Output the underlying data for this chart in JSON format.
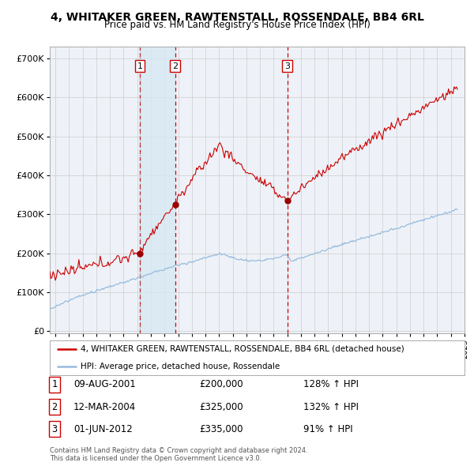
{
  "title": "4, WHITAKER GREEN, RAWTENSTALL, ROSSENDALE, BB4 6RL",
  "subtitle": "Price paid vs. HM Land Registry's House Price Index (HPI)",
  "background_color": "#ffffff",
  "plot_bg_color": "#eef2f8",
  "grid_color": "#cccccc",
  "hpi_color": "#99bbdd",
  "price_color": "#cc0000",
  "sale_marker_color": "#990000",
  "vline_color": "#cc0000",
  "shade_color": "#d8e8f4",
  "sale_dates_dt": [
    "2001-08-09",
    "2004-03-12",
    "2012-06-01"
  ],
  "sale_prices": [
    200000,
    325000,
    335000
  ],
  "sale_labels": [
    "1",
    "2",
    "3"
  ],
  "sale_pct": [
    "128% ↑ HPI",
    "132% ↑ HPI",
    "91% ↑ HPI"
  ],
  "sale_dates_fmt": [
    "09-AUG-2001",
    "12-MAR-2004",
    "01-JUN-2012"
  ],
  "sale_prices_fmt": [
    "£200,000",
    "£325,000",
    "£335,000"
  ],
  "legend_label_price": "4, WHITAKER GREEN, RAWTENSTALL, ROSSENDALE, BB4 6RL (detached house)",
  "legend_label_hpi": "HPI: Average price, detached house, Rossendale",
  "footer1": "Contains HM Land Registry data © Crown copyright and database right 2024.",
  "footer2": "This data is licensed under the Open Government Licence v3.0.",
  "yticks": [
    0,
    100000,
    200000,
    300000,
    400000,
    500000,
    600000,
    700000
  ],
  "ytick_labels": [
    "£0",
    "£100K",
    "£200K",
    "£300K",
    "£400K",
    "£500K",
    "£600K",
    "£700K"
  ],
  "ylim": [
    -5000,
    730000
  ]
}
